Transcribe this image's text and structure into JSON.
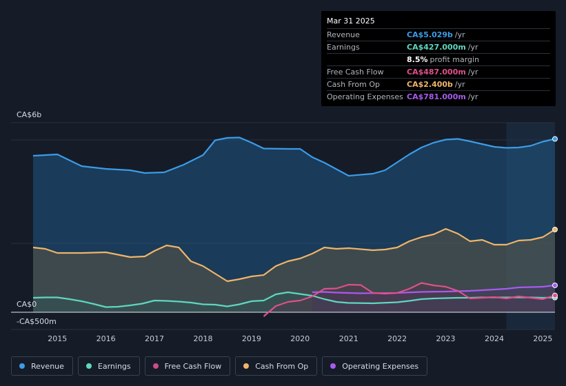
{
  "tooltip": {
    "date": "Mar 31 2025",
    "rows": [
      {
        "label": "Revenue",
        "value": "CA$5.029b",
        "unit": "/yr",
        "color": "#3b9ce8"
      },
      {
        "label": "Earnings",
        "value": "CA$427.000m",
        "unit": "/yr",
        "color": "#5ed8bf"
      },
      {
        "label": "",
        "value": "8.5%",
        "unit": "profit margin",
        "color": "#ffffff"
      },
      {
        "label": "Free Cash Flow",
        "value": "CA$487.000m",
        "unit": "/yr",
        "color": "#e0508a"
      },
      {
        "label": "Cash From Op",
        "value": "CA$2.400b",
        "unit": "/yr",
        "color": "#f0b56a"
      },
      {
        "label": "Operating Expenses",
        "value": "CA$781.000m",
        "unit": "/yr",
        "color": "#a75bf0"
      }
    ]
  },
  "legend": [
    {
      "label": "Revenue",
      "color": "#3b9ce8"
    },
    {
      "label": "Earnings",
      "color": "#5ed8bf"
    },
    {
      "label": "Free Cash Flow",
      "color": "#cc4a8a"
    },
    {
      "label": "Cash From Op",
      "color": "#f0b56a"
    },
    {
      "label": "Operating Expenses",
      "color": "#a75bf0"
    }
  ],
  "chart_data": {
    "type": "area",
    "y_labels": {
      "top": "CA$6b",
      "zero": "CA$0",
      "bottom": "-CA$500m"
    },
    "ylim": [
      -500,
      5500
    ],
    "xlim": [
      2014.5,
      2025.25
    ],
    "x_ticks": [
      "2015",
      "2016",
      "2017",
      "2018",
      "2019",
      "2020",
      "2021",
      "2022",
      "2023",
      "2024",
      "2025"
    ],
    "highlight_from": 2024.25,
    "series": [
      {
        "name": "Revenue",
        "color": "#3b9ce8",
        "points": [
          [
            2014.5,
            4540
          ],
          [
            2015.0,
            4580
          ],
          [
            2015.5,
            4240
          ],
          [
            2016.0,
            4160
          ],
          [
            2016.5,
            4120
          ],
          [
            2016.8,
            4040
          ],
          [
            2017.2,
            4060
          ],
          [
            2017.6,
            4280
          ],
          [
            2018.0,
            4560
          ],
          [
            2018.25,
            4990
          ],
          [
            2018.5,
            5060
          ],
          [
            2018.75,
            5070
          ],
          [
            2019.0,
            4920
          ],
          [
            2019.25,
            4750
          ],
          [
            2019.75,
            4740
          ],
          [
            2020.0,
            4740
          ],
          [
            2020.25,
            4500
          ],
          [
            2020.5,
            4340
          ],
          [
            2021.0,
            3960
          ],
          [
            2021.5,
            4020
          ],
          [
            2021.75,
            4120
          ],
          [
            2022.0,
            4350
          ],
          [
            2022.25,
            4580
          ],
          [
            2022.5,
            4780
          ],
          [
            2022.75,
            4920
          ],
          [
            2023.0,
            5010
          ],
          [
            2023.25,
            5030
          ],
          [
            2023.5,
            4960
          ],
          [
            2023.75,
            4880
          ],
          [
            2024.0,
            4800
          ],
          [
            2024.25,
            4770
          ],
          [
            2024.5,
            4780
          ],
          [
            2024.75,
            4830
          ],
          [
            2025.0,
            4950
          ],
          [
            2025.25,
            5029
          ]
        ]
      },
      {
        "name": "Cash From Op",
        "color": "#f0b56a",
        "points": [
          [
            2014.5,
            1880
          ],
          [
            2014.75,
            1840
          ],
          [
            2015.0,
            1720
          ],
          [
            2015.5,
            1720
          ],
          [
            2016.0,
            1740
          ],
          [
            2016.5,
            1600
          ],
          [
            2016.8,
            1620
          ],
          [
            2017.0,
            1780
          ],
          [
            2017.25,
            1940
          ],
          [
            2017.5,
            1880
          ],
          [
            2017.75,
            1480
          ],
          [
            2018.0,
            1340
          ],
          [
            2018.5,
            900
          ],
          [
            2018.75,
            960
          ],
          [
            2019.0,
            1040
          ],
          [
            2019.25,
            1080
          ],
          [
            2019.5,
            1340
          ],
          [
            2019.75,
            1480
          ],
          [
            2020.0,
            1560
          ],
          [
            2020.25,
            1700
          ],
          [
            2020.5,
            1880
          ],
          [
            2020.75,
            1840
          ],
          [
            2021.0,
            1860
          ],
          [
            2021.5,
            1800
          ],
          [
            2021.75,
            1820
          ],
          [
            2022.0,
            1880
          ],
          [
            2022.25,
            2060
          ],
          [
            2022.5,
            2180
          ],
          [
            2022.75,
            2260
          ],
          [
            2023.0,
            2420
          ],
          [
            2023.25,
            2280
          ],
          [
            2023.5,
            2060
          ],
          [
            2023.75,
            2100
          ],
          [
            2024.0,
            1960
          ],
          [
            2024.25,
            1960
          ],
          [
            2024.5,
            2080
          ],
          [
            2024.75,
            2100
          ],
          [
            2025.0,
            2180
          ],
          [
            2025.25,
            2400
          ]
        ]
      },
      {
        "name": "Earnings",
        "color": "#5ed8bf",
        "points": [
          [
            2014.5,
            420
          ],
          [
            2014.75,
            430
          ],
          [
            2015.0,
            430
          ],
          [
            2015.25,
            380
          ],
          [
            2015.5,
            320
          ],
          [
            2015.75,
            240
          ],
          [
            2016.0,
            150
          ],
          [
            2016.25,
            160
          ],
          [
            2016.5,
            200
          ],
          [
            2016.75,
            250
          ],
          [
            2017.0,
            340
          ],
          [
            2017.25,
            330
          ],
          [
            2017.5,
            310
          ],
          [
            2017.75,
            280
          ],
          [
            2018.0,
            230
          ],
          [
            2018.25,
            220
          ],
          [
            2018.5,
            170
          ],
          [
            2018.75,
            230
          ],
          [
            2019.0,
            320
          ],
          [
            2019.25,
            340
          ],
          [
            2019.5,
            520
          ],
          [
            2019.75,
            580
          ],
          [
            2020.0,
            530
          ],
          [
            2020.25,
            480
          ],
          [
            2020.5,
            380
          ],
          [
            2020.75,
            300
          ],
          [
            2021.0,
            270
          ],
          [
            2021.5,
            260
          ],
          [
            2022.0,
            290
          ],
          [
            2022.25,
            330
          ],
          [
            2022.5,
            380
          ],
          [
            2022.75,
            400
          ],
          [
            2023.0,
            410
          ],
          [
            2023.25,
            420
          ],
          [
            2023.5,
            420
          ],
          [
            2023.75,
            430
          ],
          [
            2024.0,
            430
          ],
          [
            2024.25,
            430
          ],
          [
            2024.5,
            430
          ],
          [
            2024.75,
            430
          ],
          [
            2025.0,
            420
          ],
          [
            2025.25,
            427
          ]
        ]
      },
      {
        "name": "Operating Expenses",
        "color": "#a75bf0",
        "points": [
          [
            2020.25,
            580
          ],
          [
            2020.5,
            590
          ],
          [
            2020.75,
            570
          ],
          [
            2021.0,
            560
          ],
          [
            2021.25,
            550
          ],
          [
            2021.5,
            555
          ],
          [
            2022.0,
            560
          ],
          [
            2022.5,
            590
          ],
          [
            2023.0,
            600
          ],
          [
            2023.5,
            620
          ],
          [
            2024.0,
            660
          ],
          [
            2024.25,
            680
          ],
          [
            2024.5,
            720
          ],
          [
            2025.0,
            740
          ],
          [
            2025.25,
            781
          ]
        ]
      },
      {
        "name": "Free Cash Flow",
        "color": "#e0508a",
        "points": [
          [
            2019.25,
            -120
          ],
          [
            2019.5,
            180
          ],
          [
            2019.75,
            300
          ],
          [
            2020.0,
            340
          ],
          [
            2020.25,
            460
          ],
          [
            2020.5,
            680
          ],
          [
            2020.75,
            690
          ],
          [
            2021.0,
            800
          ],
          [
            2021.25,
            790
          ],
          [
            2021.5,
            560
          ],
          [
            2021.75,
            540
          ],
          [
            2022.0,
            560
          ],
          [
            2022.25,
            680
          ],
          [
            2022.5,
            850
          ],
          [
            2022.75,
            780
          ],
          [
            2023.0,
            740
          ],
          [
            2023.25,
            620
          ],
          [
            2023.5,
            400
          ],
          [
            2023.75,
            420
          ],
          [
            2024.0,
            440
          ],
          [
            2024.25,
            400
          ],
          [
            2024.5,
            460
          ],
          [
            2024.75,
            420
          ],
          [
            2025.0,
            380
          ],
          [
            2025.25,
            487
          ]
        ]
      }
    ]
  }
}
